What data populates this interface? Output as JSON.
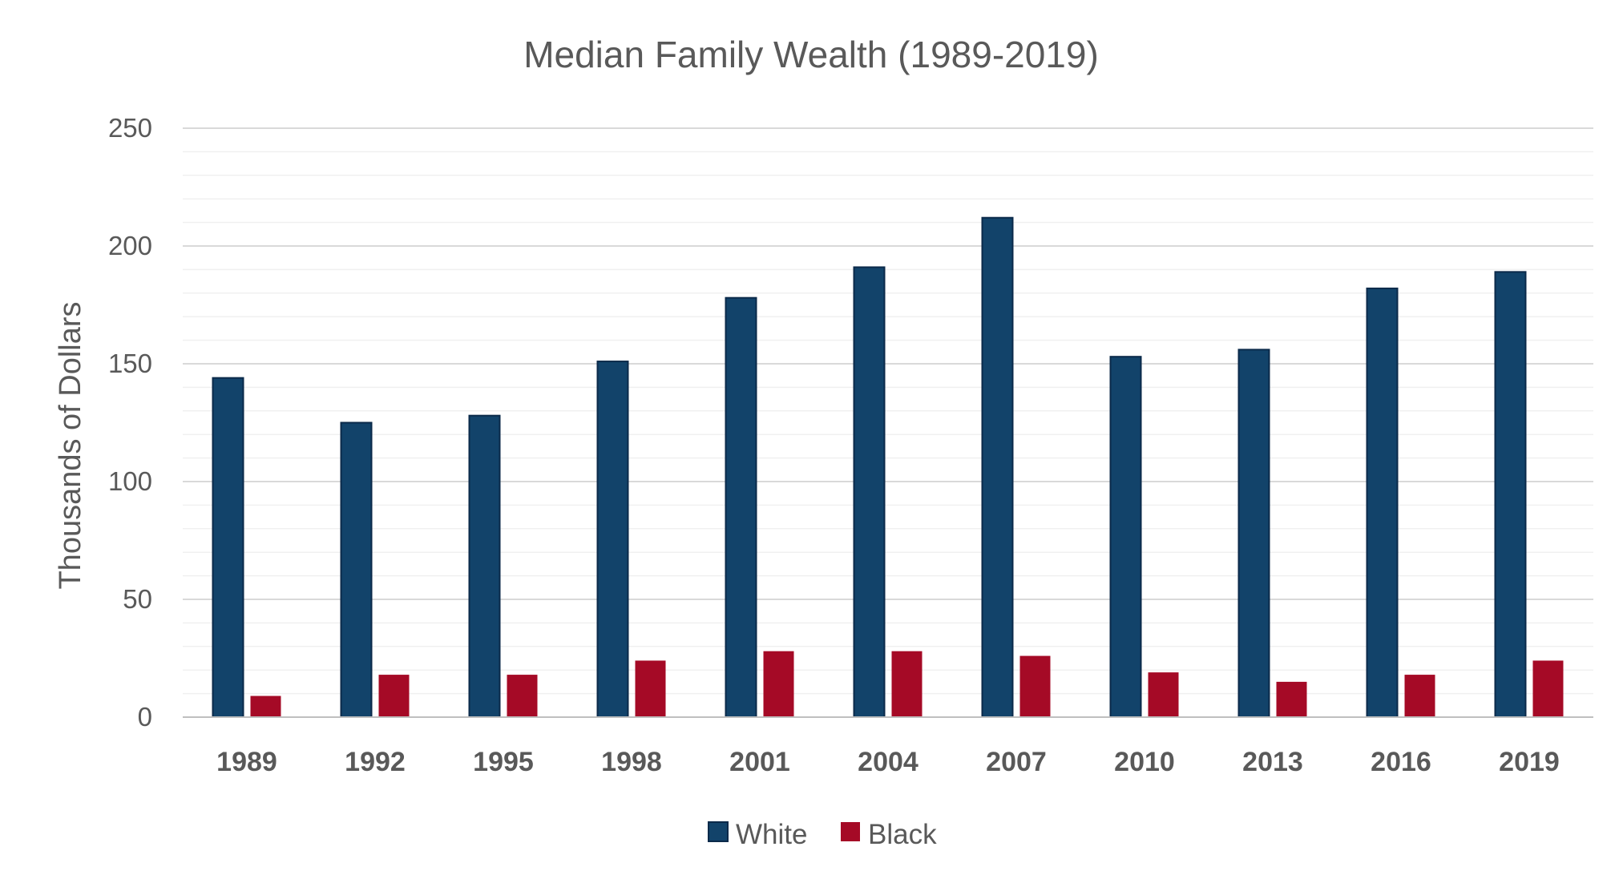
{
  "chart_data": {
    "type": "bar",
    "title": "Median Family Wealth (1989-2019)",
    "xlabel": "",
    "ylabel": "Thousands of Dollars",
    "ylim": [
      0,
      250
    ],
    "yticks": [
      0,
      50,
      100,
      150,
      200,
      250
    ],
    "minor_gridlines_step": 10,
    "grid": true,
    "legend_position": "bottom",
    "categories": [
      "1989",
      "1992",
      "1995",
      "1998",
      "2001",
      "2004",
      "2007",
      "2010",
      "2013",
      "2016",
      "2019"
    ],
    "series": [
      {
        "name": "White",
        "color": "#12436A",
        "values": [
          144,
          125,
          128,
          151,
          178,
          191,
          212,
          153,
          156,
          182,
          189
        ]
      },
      {
        "name": "Black",
        "color": "#A50A26",
        "values": [
          9,
          18,
          18,
          24,
          28,
          28,
          26,
          19,
          15,
          18,
          24
        ]
      }
    ]
  }
}
